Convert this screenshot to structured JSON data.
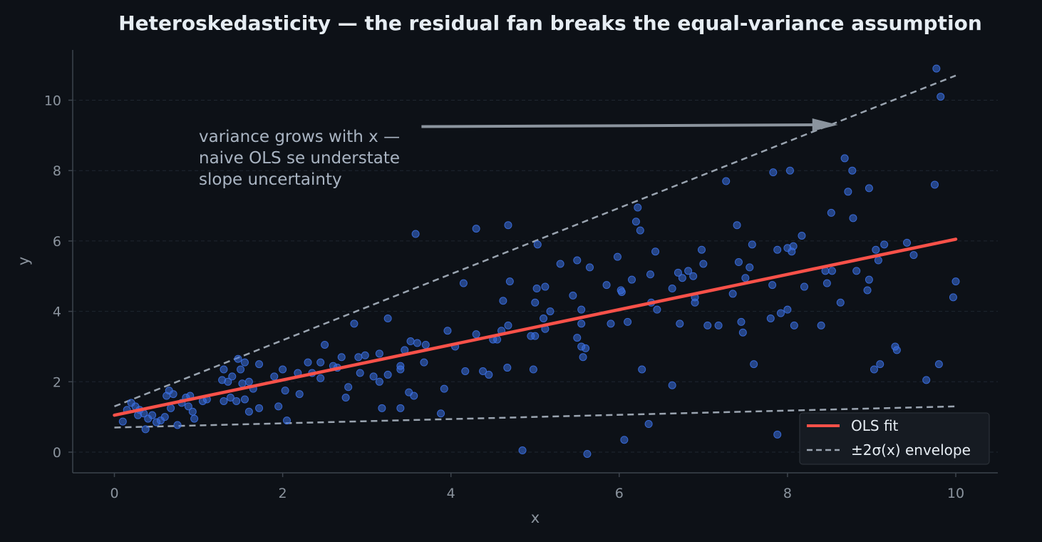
{
  "chart_data": {
    "type": "scatter",
    "title": "Heteroskedasticity — the residual fan breaks the equal-variance assumption",
    "xlabel": "x",
    "ylabel": "y",
    "xlim": [
      -0.5,
      10.5
    ],
    "ylim": [
      -0.6,
      11.5
    ],
    "xticks": [
      0,
      2,
      4,
      6,
      8,
      10
    ],
    "yticks": [
      0,
      2,
      4,
      6,
      8,
      10
    ],
    "grid": "horizontal dashed",
    "legend_position": "lower-right",
    "colors": {
      "background": "#0d1117",
      "points": "#3b6fe0",
      "ols": "#f85149",
      "envelope": "#9aa4b0",
      "arrow": "#8b949e"
    },
    "annotation": {
      "lines": [
        "variance grows with x —",
        "naive OLS se understate",
        "slope uncertainty"
      ],
      "arrow_from": [
        3.65,
        9.25
      ],
      "arrow_to": [
        8.6,
        9.3
      ]
    },
    "series": [
      {
        "name": "OLS fit",
        "kind": "line",
        "x": [
          0,
          10
        ],
        "y": [
          1.05,
          6.05
        ]
      },
      {
        "name": "±2σ(x) envelope",
        "kind": "dashed-band",
        "x": [
          0,
          10
        ],
        "upper": [
          1.3,
          10.7
        ],
        "lower": [
          0.7,
          1.3
        ]
      },
      {
        "kind": "scatter",
        "points": [
          [
            0.1,
            0.87
          ],
          [
            0.15,
            1.2
          ],
          [
            0.2,
            1.4
          ],
          [
            0.25,
            1.3
          ],
          [
            0.28,
            1.05
          ],
          [
            0.3,
            1.2
          ],
          [
            0.35,
            1.1
          ],
          [
            0.37,
            0.65
          ],
          [
            0.4,
            0.95
          ],
          [
            0.45,
            1.05
          ],
          [
            0.5,
            0.85
          ],
          [
            0.55,
            0.9
          ],
          [
            0.6,
            1.0
          ],
          [
            0.62,
            1.6
          ],
          [
            0.65,
            1.75
          ],
          [
            0.67,
            1.25
          ],
          [
            0.7,
            1.65
          ],
          [
            0.75,
            0.77
          ],
          [
            0.8,
            1.4
          ],
          [
            0.85,
            1.55
          ],
          [
            0.88,
            1.3
          ],
          [
            0.9,
            1.6
          ],
          [
            0.93,
            1.15
          ],
          [
            0.95,
            0.95
          ],
          [
            1.05,
            1.45
          ],
          [
            1.1,
            1.5
          ],
          [
            1.28,
            2.05
          ],
          [
            1.3,
            1.45
          ],
          [
            1.3,
            2.35
          ],
          [
            1.35,
            2.0
          ],
          [
            1.38,
            1.55
          ],
          [
            1.4,
            2.15
          ],
          [
            1.45,
            1.45
          ],
          [
            1.47,
            2.65
          ],
          [
            1.5,
            2.35
          ],
          [
            1.52,
            1.95
          ],
          [
            1.55,
            1.5
          ],
          [
            1.55,
            2.55
          ],
          [
            1.6,
            1.15
          ],
          [
            1.6,
            2.0
          ],
          [
            1.65,
            1.8
          ],
          [
            1.72,
            1.25
          ],
          [
            1.72,
            2.5
          ],
          [
            1.9,
            2.15
          ],
          [
            1.95,
            1.3
          ],
          [
            2.0,
            2.35
          ],
          [
            2.03,
            1.75
          ],
          [
            2.05,
            0.9
          ],
          [
            2.18,
            2.25
          ],
          [
            2.2,
            1.65
          ],
          [
            2.3,
            2.55
          ],
          [
            2.35,
            2.25
          ],
          [
            2.45,
            2.55
          ],
          [
            2.45,
            2.1
          ],
          [
            2.5,
            3.05
          ],
          [
            2.6,
            2.45
          ],
          [
            2.65,
            2.4
          ],
          [
            2.7,
            2.7
          ],
          [
            2.75,
            1.55
          ],
          [
            2.78,
            1.85
          ],
          [
            2.85,
            3.65
          ],
          [
            2.9,
            2.7
          ],
          [
            2.92,
            2.25
          ],
          [
            2.98,
            2.75
          ],
          [
            3.08,
            2.15
          ],
          [
            3.15,
            2.8
          ],
          [
            3.15,
            2.0
          ],
          [
            3.18,
            1.25
          ],
          [
            3.25,
            3.8
          ],
          [
            3.25,
            2.2
          ],
          [
            3.4,
            2.45
          ],
          [
            3.4,
            2.35
          ],
          [
            3.4,
            1.25
          ],
          [
            3.45,
            2.9
          ],
          [
            3.5,
            1.7
          ],
          [
            3.52,
            3.15
          ],
          [
            3.56,
            1.6
          ],
          [
            3.58,
            6.2
          ],
          [
            3.6,
            3.1
          ],
          [
            3.68,
            2.55
          ],
          [
            3.7,
            3.05
          ],
          [
            3.88,
            1.1
          ],
          [
            3.92,
            1.8
          ],
          [
            3.96,
            3.45
          ],
          [
            4.05,
            3.0
          ],
          [
            4.15,
            4.8
          ],
          [
            4.17,
            2.3
          ],
          [
            4.3,
            3.35
          ],
          [
            4.3,
            6.35
          ],
          [
            4.38,
            2.3
          ],
          [
            4.45,
            2.2
          ],
          [
            4.5,
            3.2
          ],
          [
            4.55,
            3.2
          ],
          [
            4.6,
            3.45
          ],
          [
            4.62,
            4.3
          ],
          [
            4.67,
            2.4
          ],
          [
            4.68,
            3.6
          ],
          [
            4.68,
            6.45
          ],
          [
            4.7,
            4.85
          ],
          [
            4.85,
            0.05
          ],
          [
            4.95,
            3.3
          ],
          [
            4.98,
            2.35
          ],
          [
            5.0,
            4.25
          ],
          [
            5.0,
            3.3
          ],
          [
            5.02,
            4.65
          ],
          [
            5.03,
            5.9
          ],
          [
            5.1,
            3.8
          ],
          [
            5.12,
            4.7
          ],
          [
            5.12,
            3.5
          ],
          [
            5.18,
            4.0
          ],
          [
            5.3,
            5.35
          ],
          [
            5.45,
            4.45
          ],
          [
            5.5,
            5.45
          ],
          [
            5.5,
            3.25
          ],
          [
            5.55,
            4.05
          ],
          [
            5.55,
            3.65
          ],
          [
            5.55,
            3.0
          ],
          [
            5.57,
            2.7
          ],
          [
            5.6,
            2.95
          ],
          [
            5.62,
            -0.05
          ],
          [
            5.65,
            5.25
          ],
          [
            5.85,
            4.75
          ],
          [
            5.9,
            3.65
          ],
          [
            5.98,
            5.55
          ],
          [
            6.02,
            4.6
          ],
          [
            6.03,
            4.55
          ],
          [
            6.06,
            0.35
          ],
          [
            6.1,
            3.7
          ],
          [
            6.15,
            4.9
          ],
          [
            6.2,
            6.55
          ],
          [
            6.22,
            6.95
          ],
          [
            6.25,
            6.3
          ],
          [
            6.27,
            2.35
          ],
          [
            6.35,
            0.8
          ],
          [
            6.37,
            5.05
          ],
          [
            6.38,
            4.25
          ],
          [
            6.43,
            5.7
          ],
          [
            6.45,
            4.05
          ],
          [
            6.63,
            4.65
          ],
          [
            6.63,
            1.9
          ],
          [
            6.7,
            5.1
          ],
          [
            6.72,
            3.65
          ],
          [
            6.75,
            4.95
          ],
          [
            6.82,
            5.15
          ],
          [
            6.88,
            5.0
          ],
          [
            6.9,
            4.4
          ],
          [
            6.9,
            4.25
          ],
          [
            6.98,
            5.75
          ],
          [
            7.0,
            5.35
          ],
          [
            7.05,
            3.6
          ],
          [
            7.18,
            3.6
          ],
          [
            7.27,
            7.7
          ],
          [
            7.35,
            4.5
          ],
          [
            7.4,
            6.45
          ],
          [
            7.42,
            5.4
          ],
          [
            7.45,
            3.7
          ],
          [
            7.47,
            3.4
          ],
          [
            7.5,
            4.95
          ],
          [
            7.55,
            5.25
          ],
          [
            7.58,
            5.9
          ],
          [
            7.6,
            2.5
          ],
          [
            7.8,
            3.8
          ],
          [
            7.82,
            4.75
          ],
          [
            7.83,
            7.95
          ],
          [
            7.88,
            5.75
          ],
          [
            7.88,
            0.5
          ],
          [
            7.92,
            3.95
          ],
          [
            8.0,
            4.05
          ],
          [
            8.0,
            5.8
          ],
          [
            8.03,
            8.0
          ],
          [
            8.05,
            5.7
          ],
          [
            8.07,
            5.85
          ],
          [
            8.08,
            3.6
          ],
          [
            8.17,
            6.15
          ],
          [
            8.2,
            4.7
          ],
          [
            8.4,
            3.6
          ],
          [
            8.45,
            5.15
          ],
          [
            8.47,
            4.8
          ],
          [
            8.52,
            6.8
          ],
          [
            8.53,
            5.15
          ],
          [
            8.63,
            4.25
          ],
          [
            8.68,
            8.35
          ],
          [
            8.72,
            7.4
          ],
          [
            8.77,
            8.0
          ],
          [
            8.78,
            6.65
          ],
          [
            8.82,
            5.15
          ],
          [
            8.95,
            4.6
          ],
          [
            8.97,
            4.9
          ],
          [
            8.97,
            7.5
          ],
          [
            9.03,
            2.35
          ],
          [
            9.05,
            5.75
          ],
          [
            9.08,
            5.45
          ],
          [
            9.1,
            2.5
          ],
          [
            9.15,
            5.9
          ],
          [
            9.28,
            3.0
          ],
          [
            9.3,
            2.9
          ],
          [
            9.42,
            5.95
          ],
          [
            9.5,
            5.6
          ],
          [
            9.65,
            2.05
          ],
          [
            9.75,
            7.6
          ],
          [
            9.77,
            10.9
          ],
          [
            9.8,
            2.5
          ],
          [
            9.82,
            10.1
          ],
          [
            9.97,
            4.4
          ],
          [
            10.0,
            4.85
          ]
        ]
      }
    ]
  },
  "legend": {
    "ols_label": "OLS fit",
    "envelope_label": "±2σ(x) envelope"
  }
}
